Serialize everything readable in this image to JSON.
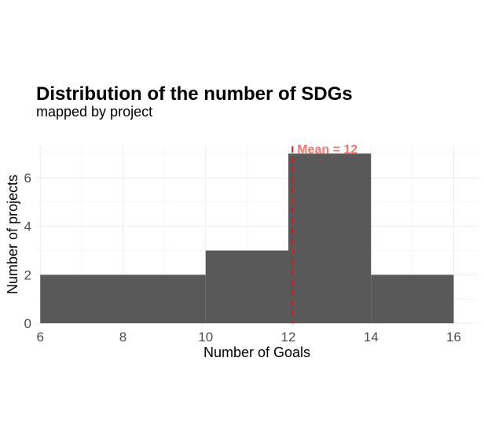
{
  "chart_data": {
    "type": "bar",
    "title": "Distribution of the number of SDGs",
    "subtitle": "mapped by project",
    "xlabel": "Number of Goals",
    "ylabel": "Number of projects",
    "xlim": [
      5.9,
      16.6
    ],
    "ylim": [
      0,
      7.3
    ],
    "x_ticks": [
      6,
      8,
      10,
      12,
      14,
      16
    ],
    "y_ticks": [
      0,
      2,
      4,
      6
    ],
    "bins": [
      {
        "x_start": 6,
        "x_end": 8,
        "count": 2
      },
      {
        "x_start": 8,
        "x_end": 10,
        "count": 2
      },
      {
        "x_start": 10,
        "x_end": 12,
        "count": 3
      },
      {
        "x_start": 12,
        "x_end": 14,
        "count": 7
      },
      {
        "x_start": 14,
        "x_end": 16,
        "count": 2
      }
    ],
    "mean_line": {
      "value": 12.1,
      "label": "Mean = 12",
      "color": "#d7191c",
      "label_color": "#f8766d"
    },
    "bar_color": "#595959",
    "grid": true
  }
}
